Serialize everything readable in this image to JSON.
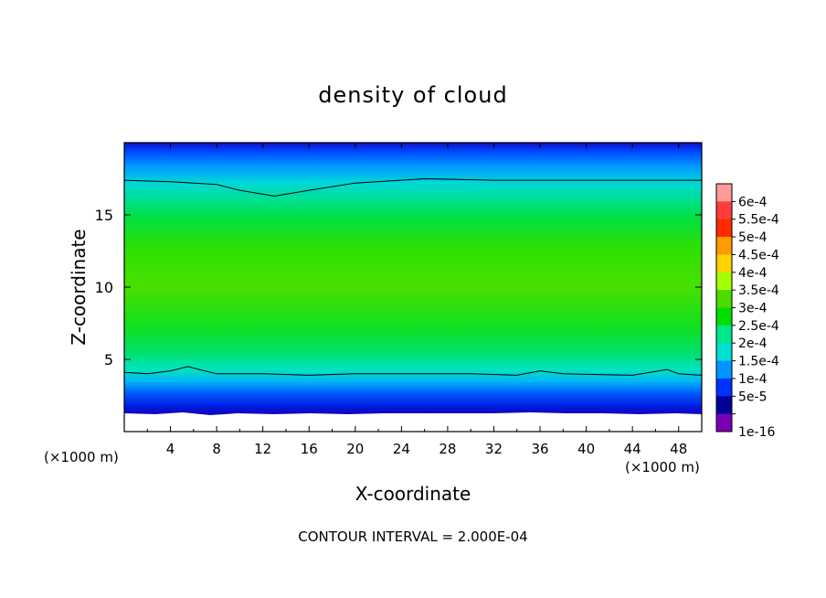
{
  "chart_data": {
    "type": "contour",
    "title": "density of cloud",
    "xlabel": "X-coordinate",
    "ylabel": "Z-coordinate",
    "x_unit": "(×1000 m)",
    "x_ticks": [
      4,
      8,
      12,
      16,
      20,
      24,
      28,
      32,
      36,
      40,
      44,
      48
    ],
    "y_ticks": [
      5,
      10,
      15
    ],
    "xlim": [
      0,
      50
    ],
    "ylim": [
      0,
      20
    ],
    "footer": "CONTOUR INTERVAL = 2.000E-04",
    "colorbar": {
      "labels": [
        "6e-4",
        "5.5e-4",
        "5e-4",
        "4.5e-4",
        "4e-4",
        "3.5e-4",
        "3e-4",
        "2.5e-4",
        "2e-4",
        "1.5e-4",
        "1e-4",
        "5e-5",
        "1e-16"
      ],
      "colors": [
        "#ff9a9a",
        "#ff3c3c",
        "#ff2a00",
        "#ff9a00",
        "#ffd200",
        "#a6ff00",
        "#4cdc00",
        "#00e000",
        "#00e88c",
        "#00e0d2",
        "#0096ff",
        "#0032ff",
        "#00009a",
        "#7a00b4"
      ]
    },
    "contour_lines": [
      {
        "level": "2.000E-04 (upper)",
        "x": [
          0,
          4,
          8,
          10,
          13,
          16,
          20,
          26,
          32,
          40,
          50
        ],
        "z": [
          17.4,
          17.3,
          17.1,
          16.7,
          16.3,
          16.7,
          17.2,
          17.5,
          17.4,
          17.4,
          17.4
        ]
      },
      {
        "level": "2.000E-04 (lower)",
        "x": [
          0,
          2,
          4,
          5.5,
          6.5,
          8,
          12,
          16,
          20,
          26,
          30,
          34,
          36,
          38,
          44,
          47,
          48,
          50
        ],
        "z": [
          4.1,
          4.0,
          4.2,
          4.5,
          4.3,
          4.0,
          4.0,
          3.9,
          4.0,
          4.0,
          4.0,
          3.9,
          4.2,
          4.0,
          3.9,
          4.3,
          4.0,
          3.9
        ]
      }
    ],
    "cloud_base_z": 1.3
  }
}
